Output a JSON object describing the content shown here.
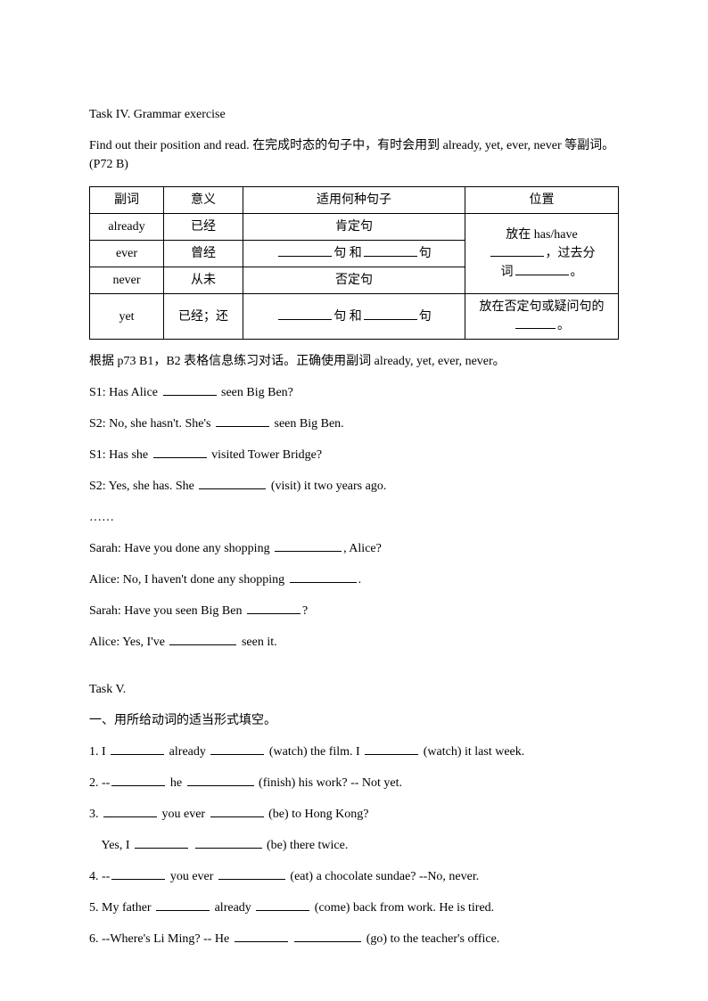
{
  "task4": {
    "title": "Task IV. Grammar exercise",
    "instruction": "Find out their position and read.  在完成时态的句子中，有时会用到 already, yet, ever, never 等副词。(P72 B)",
    "table": {
      "headers": {
        "c1": "副词",
        "c2": "意义",
        "c3": "适用何种句子",
        "c4": "位置"
      },
      "r1": {
        "c1": "already",
        "c2": "已经",
        "c3": "肯定句",
        "c4a": "放在 has/have"
      },
      "r2": {
        "c1": "ever",
        "c2": "曾经",
        "c3a": "句 和",
        "c3b": "句",
        "c4a": "，过去分"
      },
      "r3": {
        "c1": "never",
        "c2": "从未",
        "c3": "否定句",
        "c4a": "词",
        "c4b": "。"
      },
      "r4": {
        "c1": "yet",
        "c2": "已经；还",
        "c3a": "句 和",
        "c3b": "句",
        "c4a": "放在否定句或疑问句的",
        "c4b": "。"
      }
    },
    "dialog_intro": "根据 p73 B1，B2 表格信息练习对话。正确使用副词 already, yet, ever, never。",
    "d1": {
      "pre": "S1: Has Alice ",
      "post": " seen Big Ben?"
    },
    "d2": {
      "pre": "S2: No, she hasn't. She's ",
      "post": " seen Big Ben."
    },
    "d3": {
      "pre": "S1: Has she ",
      "post": " visited Tower Bridge?"
    },
    "d4": {
      "pre": "S2: Yes, she has. She ",
      "post": " (visit) it two years ago."
    },
    "dots": "……",
    "d5": {
      "pre": "Sarah: Have you done any shopping ",
      "post": ", Alice?"
    },
    "d6": {
      "pre": "Alice: No, I haven't done any shopping ",
      "post": "."
    },
    "d7": {
      "pre": "Sarah: Have you seen Big Ben ",
      "post": "?"
    },
    "d8": {
      "pre": "Alice: Yes, I've ",
      "post": " seen it."
    }
  },
  "task5": {
    "title": "Task V.",
    "sub": "一、用所给动词的适当形式填空。",
    "q1": {
      "a": "1. I ",
      "b": " already ",
      "c": " (watch) the film. I ",
      "d": " (watch) it last week."
    },
    "q2": {
      "a": "2. --",
      "b": " he ",
      "c": " (finish) his work?     -- Not yet."
    },
    "q3": {
      "a": "3. ",
      "b": " you ever ",
      "c": " (be) to Hong Kong?"
    },
    "q3b": {
      "a": "    Yes, I ",
      "b": " ",
      "c": " (be) there twice."
    },
    "q4": {
      "a": "4. --",
      "b": " you ever ",
      "c": " (eat) a chocolate sundae? --No, never."
    },
    "q5": {
      "a": "5. My father ",
      "b": " already ",
      "c": " (come) back from work.    He is tired."
    },
    "q6": {
      "a": "6. --Where's Li Ming?    -- He ",
      "b": " ",
      "c": " (go) to the teacher's office."
    }
  }
}
